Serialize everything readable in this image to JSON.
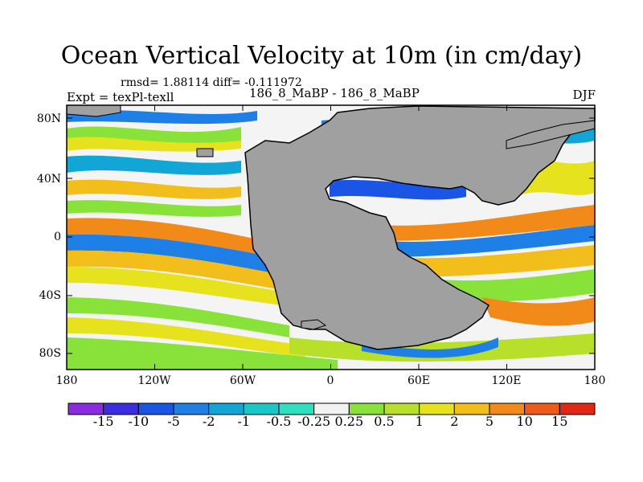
{
  "title": "Ocean Vertical Velocity at 10m (in cm/day)",
  "stats": "rmsd= 1.88114 diff= -0.111972",
  "expt": "Expt = texPl-texll",
  "cases": "186_8_MaBP - 186_8_MaBP",
  "season": "DJF",
  "lat_labels": [
    "80N",
    "40N",
    "0",
    "40S",
    "80S"
  ],
  "lon_labels": [
    "180",
    "120W",
    "60W",
    "0",
    "60E",
    "120E",
    "180"
  ],
  "colorbar": {
    "labels": [
      "-15",
      "-10",
      "-5",
      "-2",
      "-1",
      "-0.5",
      "-0.25",
      "0.25",
      "0.5",
      "1",
      "2",
      "5",
      "10",
      "15"
    ],
    "colors": [
      "#8a2be2",
      "#3a2ee0",
      "#1a55e6",
      "#1e7fe6",
      "#12a6d6",
      "#19c7c7",
      "#2ee0c0",
      "#f2f2f2",
      "#88e23a",
      "#b8e02a",
      "#e6e21e",
      "#f2be1c",
      "#f28a1a",
      "#ee5a18",
      "#e02814"
    ]
  },
  "land_color": "#a0a0a0"
}
